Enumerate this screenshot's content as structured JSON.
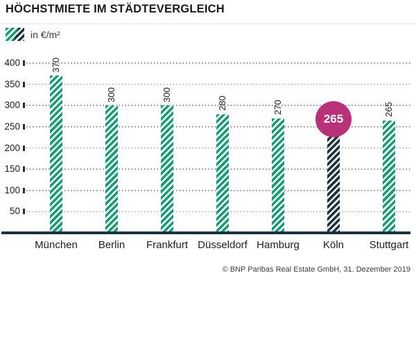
{
  "header": {
    "title": "HÖCHSTMIETE IM STÄDTEVERGLEICH"
  },
  "legend": {
    "label": "in €/m²"
  },
  "footer": {
    "source": "© BNP Paribas Real Estate GmbH, 31. Dezember 2019"
  },
  "colors": {
    "green": "#169c76",
    "navy": "#1b3340",
    "magenta": "#b93179",
    "grid": "#8f8f8f",
    "text": "#1d1d1b"
  },
  "chart_data": {
    "type": "bar",
    "title": "HÖCHSTMIETE IM STÄDTEVERGLEICH",
    "unit": "in €/m²",
    "categories": [
      "München",
      "Berlin",
      "Frankfurt",
      "Düsseldorf",
      "Hamburg",
      "Köln",
      "Stuttgart"
    ],
    "values": [
      370,
      300,
      300,
      280,
      270,
      265,
      265
    ],
    "highlight": {
      "category": "Köln",
      "value": 265,
      "style": "dark-striped-bar-with-magenta-circle-badge"
    },
    "ylim": [
      0,
      400
    ],
    "yticks": [
      50,
      100,
      150,
      200,
      250,
      300,
      350,
      400
    ],
    "grid": "dotted-horizontal",
    "legend_position": "top-left",
    "value_labels": "rotated-90-above-bars",
    "xlabel": "",
    "ylabel": ""
  }
}
